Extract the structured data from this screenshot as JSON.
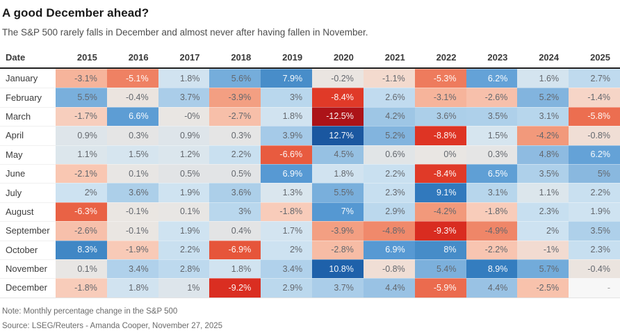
{
  "header": {
    "title": "A good December ahead?",
    "subtitle": "The S&P 500 rarely falls in December and almost never after having fallen in November."
  },
  "footer": {
    "note": "Note: Monthly percentage change in the S&P 500",
    "source": "Source: LSEG/Reuters - Amanda Cooper, November 27, 2025"
  },
  "colors": {
    "dark_blue": "#1a559f",
    "dark_red": "#ac1318",
    "neutral": "#e9e6e3",
    "no_data_bg": "#f7f7f7",
    "cell_text": "#63676d",
    "cell_text_on_dark": "rgba(255,255,255,0.95)",
    "no_data_text": "#9a9a9a",
    "header_rule": "#1f1f1f"
  },
  "chart_data": {
    "type": "heatmap",
    "title": "A good December ahead?",
    "subtitle": "The S&P 500 rarely falls in December and almost never after having fallen in November.",
    "unit": "% monthly change in the S&P 500",
    "legend_position": "none",
    "value_domain": [
      -12.5,
      12.7
    ],
    "columns": [
      "Date",
      "2015",
      "2016",
      "2017",
      "2018",
      "2019",
      "2020",
      "2021",
      "2022",
      "2023",
      "2024",
      "2025"
    ],
    "rows": [
      {
        "month": "January",
        "values": [
          -3.1,
          -5.1,
          1.8,
          5.6,
          7.9,
          -0.2,
          -1.1,
          -5.3,
          6.2,
          1.6,
          2.7
        ],
        "display": [
          "-3.1%",
          "-5.1%",
          "1.8%",
          "5.6%",
          "7.9%",
          "-0.2%",
          "-1.1%",
          "-5.3%",
          "6.2%",
          "1.6%",
          "2.7%"
        ]
      },
      {
        "month": "February",
        "values": [
          5.5,
          -0.4,
          3.7,
          -3.9,
          3,
          -8.4,
          2.6,
          -3.1,
          -2.6,
          5.2,
          -1.4
        ],
        "display": [
          "5.5%",
          "-0.4%",
          "3.7%",
          "-3.9%",
          "3%",
          "-8.4%",
          "2.6%",
          "-3.1%",
          "-2.6%",
          "5.2%",
          "-1.4%"
        ]
      },
      {
        "month": "March",
        "values": [
          -1.7,
          6.6,
          0,
          -2.7,
          1.8,
          -12.5,
          4.2,
          3.6,
          3.5,
          3.1,
          -5.8
        ],
        "display": [
          "-1.7%",
          "6.6%",
          "-0%",
          "-2.7%",
          "1.8%",
          "-12.5%",
          "4.2%",
          "3.6%",
          "3.5%",
          "3.1%",
          "-5.8%"
        ]
      },
      {
        "month": "April",
        "values": [
          0.9,
          0.3,
          0.9,
          0.3,
          3.9,
          12.7,
          5.2,
          -8.8,
          1.5,
          -4.2,
          -0.8
        ],
        "display": [
          "0.9%",
          "0.3%",
          "0.9%",
          "0.3%",
          "3.9%",
          "12.7%",
          "5.2%",
          "-8.8%",
          "1.5%",
          "-4.2%",
          "-0.8%"
        ]
      },
      {
        "month": "May",
        "values": [
          1.1,
          1.5,
          1.2,
          2.2,
          -6.6,
          4.5,
          0.6,
          0,
          0.3,
          4.8,
          6.2
        ],
        "display": [
          "1.1%",
          "1.5%",
          "1.2%",
          "2.2%",
          "-6.6%",
          "4.5%",
          "0.6%",
          "0%",
          "0.3%",
          "4.8%",
          "6.2%"
        ]
      },
      {
        "month": "June",
        "values": [
          -2.1,
          0.1,
          0.5,
          0.5,
          6.9,
          1.8,
          2.2,
          -8.4,
          6.5,
          3.5,
          5
        ],
        "display": [
          "-2.1%",
          "0.1%",
          "0.5%",
          "0.5%",
          "6.9%",
          "1.8%",
          "2.2%",
          "-8.4%",
          "6.5%",
          "3.5%",
          "5%"
        ]
      },
      {
        "month": "July",
        "values": [
          2,
          3.6,
          1.9,
          3.6,
          1.3,
          5.5,
          2.3,
          9.1,
          3.1,
          1.1,
          2.2
        ],
        "display": [
          "2%",
          "3.6%",
          "1.9%",
          "3.6%",
          "1.3%",
          "5.5%",
          "2.3%",
          "9.1%",
          "3.1%",
          "1.1%",
          "2.2%"
        ]
      },
      {
        "month": "August",
        "values": [
          -6.3,
          -0.1,
          0.1,
          3,
          -1.8,
          7,
          2.9,
          -4.2,
          -1.8,
          2.3,
          1.9
        ],
        "display": [
          "-6.3%",
          "-0.1%",
          "0.1%",
          "3%",
          "-1.8%",
          "7%",
          "2.9%",
          "-4.2%",
          "-1.8%",
          "2.3%",
          "1.9%"
        ]
      },
      {
        "month": "September",
        "values": [
          -2.6,
          -0.1,
          1.9,
          0.4,
          1.7,
          -3.9,
          -4.8,
          -9.3,
          -4.9,
          2,
          3.5
        ],
        "display": [
          "-2.6%",
          "-0.1%",
          "1.9%",
          "0.4%",
          "1.7%",
          "-3.9%",
          "-4.8%",
          "-9.3%",
          "-4.9%",
          "2%",
          "3.5%"
        ]
      },
      {
        "month": "October",
        "values": [
          8.3,
          -1.9,
          2.2,
          -6.9,
          2,
          -2.8,
          6.9,
          8,
          -2.2,
          -1,
          2.3
        ],
        "display": [
          "8.3%",
          "-1.9%",
          "2.2%",
          "-6.9%",
          "2%",
          "-2.8%",
          "6.9%",
          "8%",
          "-2.2%",
          "-1%",
          "2.3%"
        ]
      },
      {
        "month": "November",
        "values": [
          0.1,
          3.4,
          2.8,
          1.8,
          3.4,
          10.8,
          -0.8,
          5.4,
          8.9,
          5.7,
          -0.4
        ],
        "display": [
          "0.1%",
          "3.4%",
          "2.8%",
          "1.8%",
          "3.4%",
          "10.8%",
          "-0.8%",
          "5.4%",
          "8.9%",
          "5.7%",
          "-0.4%"
        ]
      },
      {
        "month": "December",
        "values": [
          -1.8,
          1.8,
          1,
          -9.2,
          2.9,
          3.7,
          4.4,
          -5.9,
          4.4,
          -2.5,
          null
        ],
        "display": [
          "-1.8%",
          "1.8%",
          "1%",
          "-9.2%",
          "2.9%",
          "3.7%",
          "4.4%",
          "-5.9%",
          "4.4%",
          "-2.5%",
          "-"
        ]
      }
    ],
    "color_scale": {
      "blue_stops": [
        [
          0,
          "#e9e6e3"
        ],
        [
          0.4,
          "#e3e4e5"
        ],
        [
          0.8,
          "#dfe5e9"
        ],
        [
          1.3,
          "#dae6ee"
        ],
        [
          2,
          "#cde2f1"
        ],
        [
          3,
          "#b9d7ed"
        ],
        [
          4,
          "#a3c9e7"
        ],
        [
          5,
          "#89b8df"
        ],
        [
          6,
          "#68a5d8"
        ],
        [
          7,
          "#5598d2"
        ],
        [
          8,
          "#468cc8"
        ],
        [
          9,
          "#327bbe"
        ],
        [
          10,
          "#246ab1"
        ],
        [
          11,
          "#1c5fa8"
        ],
        [
          13,
          "#1a559f"
        ]
      ],
      "red_stops": [
        [
          0,
          "#e9e6e3"
        ],
        [
          0.4,
          "#ebe4df"
        ],
        [
          0.8,
          "#f0ded5"
        ],
        [
          1.3,
          "#f5d7ca"
        ],
        [
          2,
          "#f9c8b4"
        ],
        [
          2.7,
          "#f7bfa9"
        ],
        [
          3.5,
          "#f4a88c"
        ],
        [
          4.5,
          "#f19274"
        ],
        [
          5.5,
          "#ed7557"
        ],
        [
          6.5,
          "#e85d41"
        ],
        [
          7.5,
          "#e34830"
        ],
        [
          8.8,
          "#de3424"
        ],
        [
          9.5,
          "#d7291f"
        ],
        [
          12.5,
          "#ac1318"
        ]
      ],
      "white_text_when": "value >= 6 or value <= -5"
    }
  }
}
